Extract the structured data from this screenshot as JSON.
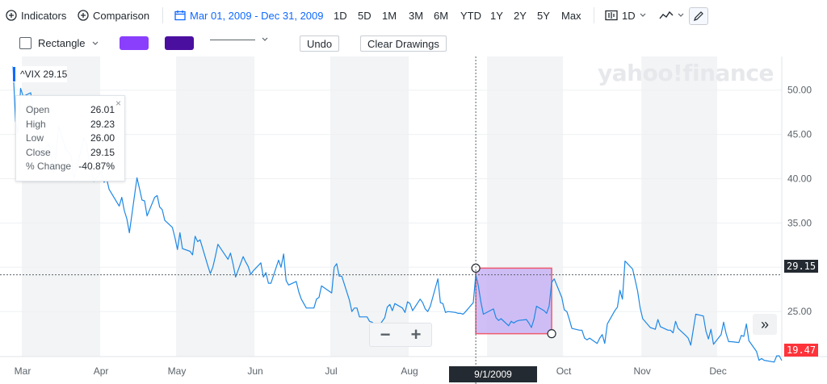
{
  "toolbar": {
    "indicators_label": "Indicators",
    "comparison_label": "Comparison",
    "date_range": "Mar 01, 2009 - Dec 31, 2009",
    "ranges": [
      "1D",
      "5D",
      "1M",
      "3M",
      "6M",
      "YTD",
      "1Y",
      "2Y",
      "5Y",
      "Max"
    ],
    "interval_label": "1D"
  },
  "drawing_toolbar": {
    "shape_label": "Rectangle",
    "fill_color": "#8a3ffc",
    "stroke_color": "#4b0fa0",
    "undo_label": "Undo",
    "clear_label": "Clear Drawings"
  },
  "ticker": {
    "symbol": "^VIX",
    "price": "29.15"
  },
  "tooltip": {
    "rows": [
      {
        "label": "Open",
        "value": "26.01"
      },
      {
        "label": "High",
        "value": "29.23"
      },
      {
        "label": "Low",
        "value": "26.00"
      },
      {
        "label": "Close",
        "value": "29.15"
      },
      {
        "label": "% Change",
        "value": "-40.87%"
      }
    ],
    "close_glyph": "×"
  },
  "watermark": "yahoo!finance",
  "crosshair": {
    "date_label": "9/1/2009",
    "price_label": "29.15"
  },
  "last_price_label": "19.47",
  "zoom": {
    "minus": "−",
    "plus": "+"
  },
  "expand_glyph": "»",
  "colors": {
    "line": "#1e88e5",
    "accent": "#0f69ff",
    "last_price": "#ff333a",
    "rect_fill": "#c8b3f5",
    "rect_stroke": "#ef5a6f"
  },
  "chart_data": {
    "type": "line",
    "series_name": "^VIX",
    "xlabels": [
      "Mar",
      "Apr",
      "May",
      "Jun",
      "Jul",
      "Aug",
      "Sep",
      "Oct",
      "Nov",
      "Dec"
    ],
    "ytick_labels": [
      "50.00",
      "45.00",
      "40.00",
      "35.00",
      "30.00",
      "25.00"
    ],
    "yticks": [
      50,
      45,
      40,
      35,
      30,
      25
    ],
    "ylim": [
      20.1,
      53.8
    ],
    "x_start": "2009-03-01",
    "x_end": "2009-12-31",
    "drawn_rectangle": {
      "x_from": "2009-09-01",
      "x_to": "2009-10-01",
      "y_from": 22.5,
      "y_to": 29.9
    },
    "points": [
      [
        "2009-03-02",
        52.7
      ],
      [
        "2009-03-03",
        46.5
      ],
      [
        "2009-03-04",
        45.1
      ],
      [
        "2009-03-05",
        50.2
      ],
      [
        "2009-03-06",
        49.3
      ],
      [
        "2009-03-09",
        49.7
      ],
      [
        "2009-03-10",
        47.8
      ],
      [
        "2009-03-11",
        46.3
      ],
      [
        "2009-03-12",
        44.4
      ],
      [
        "2009-03-13",
        42.4
      ],
      [
        "2009-03-16",
        44.0
      ],
      [
        "2009-03-17",
        42.9
      ],
      [
        "2009-03-18",
        40.6
      ],
      [
        "2009-03-19",
        42.6
      ],
      [
        "2009-03-20",
        45.9
      ],
      [
        "2009-03-23",
        43.2
      ],
      [
        "2009-03-24",
        43.0
      ],
      [
        "2009-03-25",
        42.6
      ],
      [
        "2009-03-26",
        40.1
      ],
      [
        "2009-03-27",
        41.0
      ],
      [
        "2009-03-30",
        44.6
      ],
      [
        "2009-03-31",
        44.0
      ],
      [
        "2009-04-01",
        42.3
      ],
      [
        "2009-04-02",
        41.0
      ],
      [
        "2009-04-03",
        39.7
      ],
      [
        "2009-04-06",
        40.9
      ],
      [
        "2009-04-07",
        39.6
      ],
      [
        "2009-04-08",
        40.0
      ],
      [
        "2009-04-09",
        38.8
      ],
      [
        "2009-04-13",
        36.9
      ],
      [
        "2009-04-14",
        37.9
      ],
      [
        "2009-04-15",
        36.4
      ],
      [
        "2009-04-16",
        35.5
      ],
      [
        "2009-04-17",
        33.9
      ],
      [
        "2009-04-20",
        40.1
      ],
      [
        "2009-04-21",
        38.9
      ],
      [
        "2009-04-22",
        37.6
      ],
      [
        "2009-04-23",
        37.5
      ],
      [
        "2009-04-24",
        35.8
      ],
      [
        "2009-04-27",
        37.9
      ],
      [
        "2009-04-28",
        38.1
      ],
      [
        "2009-04-29",
        36.8
      ],
      [
        "2009-04-30",
        36.5
      ],
      [
        "2009-05-01",
        35.3
      ],
      [
        "2009-05-04",
        34.5
      ],
      [
        "2009-05-05",
        33.4
      ],
      [
        "2009-05-06",
        32.0
      ],
      [
        "2009-05-07",
        33.9
      ],
      [
        "2009-05-08",
        32.1
      ],
      [
        "2009-05-11",
        31.8
      ],
      [
        "2009-05-12",
        31.4
      ],
      [
        "2009-05-13",
        33.5
      ],
      [
        "2009-05-14",
        32.9
      ],
      [
        "2009-05-15",
        33.1
      ],
      [
        "2009-05-18",
        30.2
      ],
      [
        "2009-05-19",
        29.3
      ],
      [
        "2009-05-20",
        30.0
      ],
      [
        "2009-05-21",
        31.2
      ],
      [
        "2009-05-22",
        32.6
      ],
      [
        "2009-05-26",
        30.9
      ],
      [
        "2009-05-27",
        31.6
      ],
      [
        "2009-05-28",
        30.4
      ],
      [
        "2009-05-29",
        28.9
      ],
      [
        "2009-06-01",
        31.2
      ],
      [
        "2009-06-02",
        30.6
      ],
      [
        "2009-06-03",
        30.1
      ],
      [
        "2009-06-04",
        29.2
      ],
      [
        "2009-06-05",
        29.6
      ],
      [
        "2009-06-08",
        30.5
      ],
      [
        "2009-06-09",
        28.9
      ],
      [
        "2009-06-10",
        29.4
      ],
      [
        "2009-06-11",
        28.2
      ],
      [
        "2009-06-12",
        28.2
      ],
      [
        "2009-06-15",
        30.8
      ],
      [
        "2009-06-16",
        30.0
      ],
      [
        "2009-06-17",
        31.5
      ],
      [
        "2009-06-18",
        28.5
      ],
      [
        "2009-06-19",
        28.0
      ],
      [
        "2009-06-22",
        28.4
      ],
      [
        "2009-06-23",
        27.2
      ],
      [
        "2009-06-24",
        26.4
      ],
      [
        "2009-06-25",
        25.9
      ],
      [
        "2009-06-26",
        25.4
      ],
      [
        "2009-06-29",
        25.4
      ],
      [
        "2009-06-30",
        26.4
      ],
      [
        "2009-07-01",
        26.6
      ],
      [
        "2009-07-02",
        27.9
      ],
      [
        "2009-07-06",
        27.1
      ],
      [
        "2009-07-07",
        30.0
      ],
      [
        "2009-07-08",
        30.4
      ],
      [
        "2009-07-09",
        29.0
      ],
      [
        "2009-07-10",
        29.0
      ],
      [
        "2009-07-13",
        26.3
      ],
      [
        "2009-07-14",
        25.0
      ],
      [
        "2009-07-15",
        25.4
      ],
      [
        "2009-07-16",
        25.4
      ],
      [
        "2009-07-17",
        24.4
      ],
      [
        "2009-07-20",
        24.4
      ],
      [
        "2009-07-21",
        23.9
      ],
      [
        "2009-07-22",
        23.8
      ],
      [
        "2009-07-23",
        23.5
      ],
      [
        "2009-07-24",
        23.1
      ],
      [
        "2009-07-27",
        24.3
      ],
      [
        "2009-07-28",
        25.5
      ],
      [
        "2009-07-29",
        25.8
      ],
      [
        "2009-07-30",
        25.1
      ],
      [
        "2009-07-31",
        25.9
      ],
      [
        "2009-08-03",
        25.4
      ],
      [
        "2009-08-04",
        24.9
      ],
      [
        "2009-08-05",
        26.1
      ],
      [
        "2009-08-06",
        25.9
      ],
      [
        "2009-08-07",
        25.1
      ],
      [
        "2009-08-10",
        26.4
      ],
      [
        "2009-08-11",
        26.0
      ],
      [
        "2009-08-12",
        25.3
      ],
      [
        "2009-08-13",
        25.0
      ],
      [
        "2009-08-14",
        25.6
      ],
      [
        "2009-08-17",
        28.7
      ],
      [
        "2009-08-18",
        26.0
      ],
      [
        "2009-08-19",
        25.9
      ],
      [
        "2009-08-20",
        24.9
      ],
      [
        "2009-08-21",
        25.0
      ],
      [
        "2009-08-24",
        24.9
      ],
      [
        "2009-08-25",
        24.8
      ],
      [
        "2009-08-26",
        24.8
      ],
      [
        "2009-08-27",
        24.7
      ],
      [
        "2009-08-28",
        25.0
      ],
      [
        "2009-08-31",
        26.0
      ],
      [
        "2009-09-01",
        29.15
      ],
      [
        "2009-09-02",
        27.9
      ],
      [
        "2009-09-03",
        26.1
      ],
      [
        "2009-09-04",
        24.7
      ],
      [
        "2009-09-08",
        25.3
      ],
      [
        "2009-09-09",
        24.3
      ],
      [
        "2009-09-10",
        24.0
      ],
      [
        "2009-09-11",
        24.2
      ],
      [
        "2009-09-14",
        23.4
      ],
      [
        "2009-09-15",
        23.9
      ],
      [
        "2009-09-16",
        23.7
      ],
      [
        "2009-09-17",
        23.9
      ],
      [
        "2009-09-18",
        24.0
      ],
      [
        "2009-09-21",
        24.1
      ],
      [
        "2009-09-22",
        23.7
      ],
      [
        "2009-09-23",
        23.2
      ],
      [
        "2009-09-24",
        24.1
      ],
      [
        "2009-09-25",
        25.6
      ],
      [
        "2009-09-28",
        25.1
      ],
      [
        "2009-09-29",
        24.8
      ],
      [
        "2009-09-30",
        25.6
      ],
      [
        "2009-10-01",
        28.3
      ],
      [
        "2009-10-02",
        28.7
      ],
      [
        "2009-10-05",
        26.6
      ],
      [
        "2009-10-06",
        25.2
      ],
      [
        "2009-10-07",
        25.0
      ],
      [
        "2009-10-08",
        24.1
      ],
      [
        "2009-10-09",
        23.1
      ],
      [
        "2009-10-12",
        22.9
      ],
      [
        "2009-10-13",
        22.9
      ],
      [
        "2009-10-14",
        22.0
      ],
      [
        "2009-10-15",
        21.8
      ],
      [
        "2009-10-16",
        22.0
      ],
      [
        "2009-10-19",
        21.4
      ],
      [
        "2009-10-20",
        22.0
      ],
      [
        "2009-10-21",
        22.4
      ],
      [
        "2009-10-22",
        21.4
      ],
      [
        "2009-10-23",
        23.6
      ],
      [
        "2009-10-26",
        25.1
      ],
      [
        "2009-10-27",
        25.5
      ],
      [
        "2009-10-28",
        27.4
      ],
      [
        "2009-10-29",
        26.4
      ],
      [
        "2009-10-30",
        30.7
      ],
      [
        "2009-11-02",
        29.8
      ],
      [
        "2009-11-03",
        28.6
      ],
      [
        "2009-11-04",
        27.3
      ],
      [
        "2009-11-05",
        25.4
      ],
      [
        "2009-11-06",
        24.2
      ],
      [
        "2009-11-09",
        23.2
      ],
      [
        "2009-11-10",
        23.1
      ],
      [
        "2009-11-11",
        23.0
      ],
      [
        "2009-11-12",
        24.1
      ],
      [
        "2009-11-13",
        23.3
      ],
      [
        "2009-11-16",
        22.9
      ],
      [
        "2009-11-17",
        22.9
      ],
      [
        "2009-11-18",
        22.6
      ],
      [
        "2009-11-19",
        23.9
      ],
      [
        "2009-11-20",
        23.1
      ],
      [
        "2009-11-23",
        22.3
      ],
      [
        "2009-11-24",
        22.0
      ],
      [
        "2009-11-25",
        21.2
      ],
      [
        "2009-11-27",
        24.7
      ],
      [
        "2009-11-30",
        24.5
      ],
      [
        "2009-12-01",
        22.8
      ],
      [
        "2009-12-02",
        21.9
      ],
      [
        "2009-12-03",
        23.0
      ],
      [
        "2009-12-04",
        21.3
      ],
      [
        "2009-12-07",
        22.4
      ],
      [
        "2009-12-08",
        23.8
      ],
      [
        "2009-12-09",
        22.5
      ],
      [
        "2009-12-10",
        21.6
      ],
      [
        "2009-12-11",
        21.6
      ],
      [
        "2009-12-14",
        21.5
      ],
      [
        "2009-12-15",
        22.3
      ],
      [
        "2009-12-16",
        22.2
      ],
      [
        "2009-12-17",
        23.6
      ],
      [
        "2009-12-18",
        21.7
      ],
      [
        "2009-12-21",
        20.5
      ],
      [
        "2009-12-22",
        19.5
      ],
      [
        "2009-12-23",
        19.7
      ],
      [
        "2009-12-24",
        19.5
      ],
      [
        "2009-12-28",
        19.3
      ],
      [
        "2009-12-29",
        20.0
      ],
      [
        "2009-12-30",
        20.0
      ],
      [
        "2009-12-31",
        19.47
      ]
    ]
  }
}
